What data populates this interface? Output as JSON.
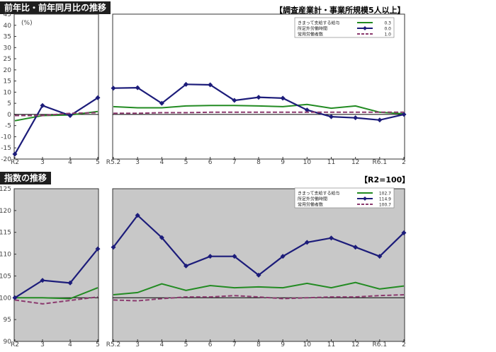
{
  "headings": {
    "top": "前年比・前年同月比の推移",
    "bottom": "指数の推移",
    "top_note": "【調査産業計・事業所規模5人以上】",
    "bottom_note": "【R2=100】"
  },
  "colors": {
    "wages": "#228b22",
    "overtime": "#1c1c7a",
    "employees": "#8b3a6e",
    "plot_bg_top": "#ffffff",
    "plot_bg_bottom": "#c8c8c8"
  },
  "chart_data": [
    {
      "type": "line",
      "title": "前年比・前年同月比の推移",
      "unit_label": "(%)",
      "ylim": [
        -20,
        45
      ],
      "yticks": [
        -20,
        -15,
        -10,
        -5,
        0,
        5,
        10,
        15,
        20,
        25,
        30,
        35,
        40,
        45
      ],
      "grid": false,
      "legend_position": "top-right",
      "panels": [
        {
          "categories": [
            "R2",
            "3",
            "4",
            "5"
          ],
          "series": [
            {
              "name": "きまって支給する給与",
              "values": [
                -2.8,
                -0.5,
                -0.2,
                1.3
              ]
            },
            {
              "name": "所定外労働時間",
              "values": [
                -17.8,
                4.0,
                -0.5,
                7.5
              ]
            },
            {
              "name": "常用労働者数",
              "values": [
                -0.5,
                -0.5,
                0.5,
                0.8
              ]
            }
          ]
        },
        {
          "categories": [
            "R5.2",
            "3",
            "4",
            "5",
            "6",
            "7",
            "8",
            "9",
            "10",
            "11",
            "12",
            "R6.1",
            "2"
          ],
          "series": [
            {
              "name": "きまって支給する給与",
              "values": [
                3.5,
                3.0,
                3.0,
                3.8,
                4.0,
                4.0,
                3.8,
                3.5,
                4.5,
                2.8,
                3.8,
                1.0,
                0.3
              ]
            },
            {
              "name": "所定外労働時間",
              "values": [
                11.8,
                12.0,
                5.0,
                13.5,
                13.3,
                6.3,
                7.7,
                7.3,
                2.0,
                -1.0,
                -1.5,
                -2.5,
                0.0
              ]
            },
            {
              "name": "常用労働者数",
              "values": [
                0.5,
                0.5,
                0.8,
                0.8,
                1.0,
                1.0,
                1.0,
                1.0,
                1.0,
                1.0,
                1.0,
                1.0,
                1.0
              ]
            }
          ]
        }
      ],
      "legend_values": [
        "0.3",
        "0.0",
        "1.0"
      ]
    },
    {
      "type": "line",
      "title": "指数の推移",
      "ylim": [
        90,
        125
      ],
      "yticks": [
        90,
        95,
        100,
        105,
        110,
        115,
        120,
        125
      ],
      "grid": false,
      "legend_position": "top-right",
      "panels": [
        {
          "categories": [
            "R2",
            "3",
            "4",
            "5"
          ],
          "series": [
            {
              "name": "きまって支給する給与",
              "values": [
                100.0,
                100.0,
                99.8,
                102.3
              ]
            },
            {
              "name": "所定外労働時間",
              "values": [
                100.0,
                104.0,
                103.4,
                111.2
              ]
            },
            {
              "name": "常用労働者数",
              "values": [
                99.5,
                98.6,
                99.4,
                100.2
              ]
            }
          ]
        },
        {
          "categories": [
            "R5.2",
            "3",
            "4",
            "5",
            "6",
            "7",
            "8",
            "9",
            "10",
            "11",
            "12",
            "R6.1",
            "2"
          ],
          "series": [
            {
              "name": "きまって支給する給与",
              "values": [
                100.7,
                101.2,
                103.2,
                101.7,
                102.8,
                102.3,
                102.5,
                102.3,
                103.3,
                102.3,
                103.5,
                102.0,
                102.7
              ]
            },
            {
              "name": "所定外労働時間",
              "values": [
                111.6,
                118.9,
                113.8,
                107.3,
                109.5,
                109.5,
                105.2,
                109.5,
                112.7,
                113.7,
                111.6,
                109.5,
                114.9
              ]
            },
            {
              "name": "常用労働者数",
              "values": [
                99.5,
                99.3,
                99.8,
                100.2,
                100.2,
                100.5,
                100.2,
                99.8,
                100.0,
                100.2,
                100.2,
                100.5,
                100.7
              ]
            }
          ]
        }
      ],
      "legend_values": [
        "102.7",
        "114.9",
        "100.7"
      ]
    }
  ]
}
